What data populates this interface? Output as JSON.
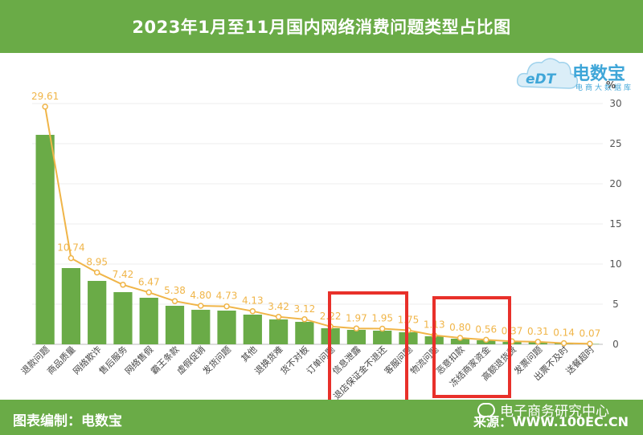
{
  "header": {
    "title": "2023年1月至11月国内网络消费问题类型占比图"
  },
  "footer": {
    "left": "图表编制：电数宝",
    "right": "来源：WWW.100EC.CN",
    "watermark": "电子商务研究中心"
  },
  "logo": {
    "brand": "电数宝",
    "sub": "电商大数据库",
    "mark": "eDT"
  },
  "colors": {
    "bar": "#6aab47",
    "line": "#f0b548",
    "highlight": "#e8302a",
    "band": "#6aab47"
  },
  "chart_data": {
    "type": "bar",
    "title": "2023年1月至11月国内网络消费问题类型占比图",
    "unit": "%",
    "y_axis_side": "right",
    "ylim": [
      0,
      30
    ],
    "yticks": [
      0,
      5,
      10,
      15,
      20,
      25,
      30
    ],
    "grid": true,
    "categories": [
      "退款问题",
      "商品质量",
      "网络欺诈",
      "售后服务",
      "网络售假",
      "霸王条款",
      "虚假促销",
      "发货问题",
      "其他",
      "退换货难",
      "货不对板",
      "订单问题",
      "信息泄露",
      "退店保证金不退还",
      "客服问题",
      "物流问题",
      "恶意扣款",
      "冻结商家资金",
      "高额退货费",
      "发票问题",
      "出票不及时",
      "送餐超时"
    ],
    "series": [
      {
        "type": "bar",
        "values": [
          26.1,
          9.5,
          7.9,
          6.5,
          5.8,
          4.8,
          4.3,
          4.2,
          3.7,
          3.1,
          2.8,
          2.0,
          1.8,
          1.7,
          1.5,
          1.0,
          0.7,
          0.5,
          0.3,
          0.25,
          0.1,
          0.05
        ]
      },
      {
        "type": "line",
        "values": [
          29.61,
          10.74,
          8.95,
          7.42,
          6.47,
          5.38,
          4.8,
          4.73,
          4.13,
          3.42,
          3.12,
          2.22,
          1.97,
          1.95,
          1.75,
          1.13,
          0.8,
          0.56,
          0.37,
          0.31,
          0.14,
          0.07
        ],
        "labels": [
          "29.61",
          "10.74",
          "8.95",
          "7.42",
          "6.47",
          "5.38",
          "4.80",
          "4.73",
          "4.13",
          "3.42",
          "3.12",
          "2.22",
          "1.97",
          "1.95",
          "1.75",
          "1.13",
          "0.80",
          "0.56",
          "0.37",
          "0.31",
          "0.14",
          "0.07"
        ]
      }
    ],
    "highlights": [
      {
        "from": "信息泄露",
        "to": "退店保证金不退还"
      },
      {
        "from": "恶意扣款",
        "to": "冻结商家资金"
      }
    ]
  }
}
